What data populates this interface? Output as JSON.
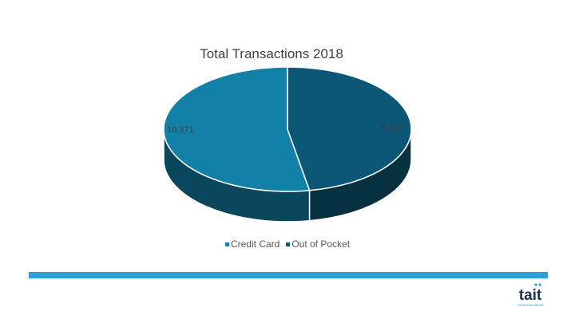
{
  "chart_data": {
    "type": "pie",
    "title": "Total Transactions 2018",
    "slices": [
      {
        "label": "Credit Card",
        "value": 10371,
        "value_label": "10,371",
        "color": "#1380a8"
      },
      {
        "label": "Out of Pocket",
        "value": 9252,
        "value_label": "9,252",
        "color": "#0c5775"
      }
    ],
    "legend_position": "bottom",
    "style": "3d"
  },
  "footer": {
    "accent_color": "#29a3d6",
    "logo": {
      "text": "tait",
      "subtext": "communications",
      "icon": "tait-logo"
    }
  }
}
